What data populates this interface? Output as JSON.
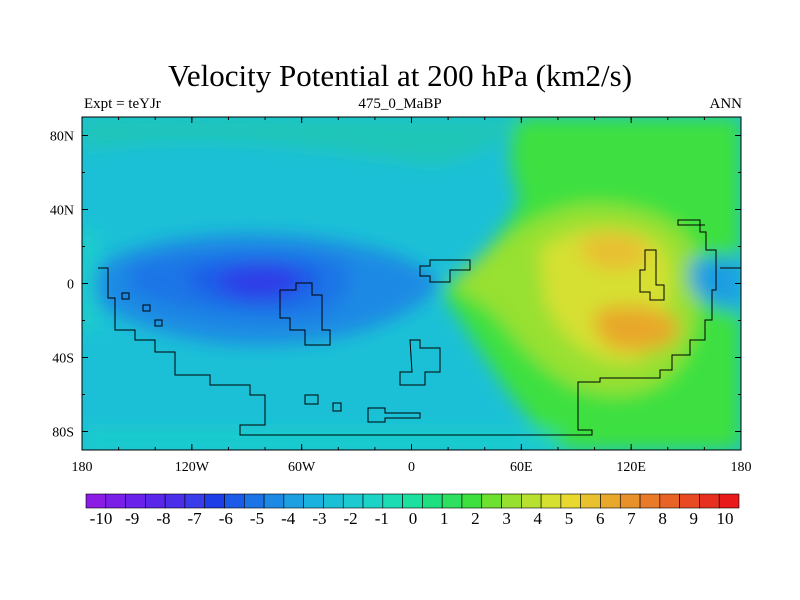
{
  "title": "Velocity Potential at 200 hPa (km2/s)",
  "subtitle_left": "Expt = teYJr",
  "subtitle_center": "475_0_MaBP",
  "subtitle_right": "ANN",
  "chart_data": {
    "type": "heatmap",
    "projection": "cylindrical-equidistant",
    "variable": "velocity potential at 200 hPa",
    "units": "km2/s",
    "lon_range": [
      -180,
      180
    ],
    "lat_range": [
      -90,
      90
    ],
    "x_ticks": [
      {
        "value": -180,
        "label": "180"
      },
      {
        "value": -120,
        "label": "120W"
      },
      {
        "value": -60,
        "label": "60W"
      },
      {
        "value": 0,
        "label": "0"
      },
      {
        "value": 60,
        "label": "60E"
      },
      {
        "value": 120,
        "label": "120E"
      },
      {
        "value": 180,
        "label": "180"
      }
    ],
    "y_ticks": [
      {
        "value": 80,
        "label": "80N"
      },
      {
        "value": 40,
        "label": "40N"
      },
      {
        "value": 0,
        "label": "0"
      },
      {
        "value": -40,
        "label": "40S"
      },
      {
        "value": -80,
        "label": "80S"
      }
    ],
    "colorbar": {
      "labels": [
        "-10",
        "-9",
        "-8",
        "-7",
        "-6",
        "-5",
        "-4",
        "-3",
        "-2",
        "-1",
        "0",
        "1",
        "2",
        "3",
        "4",
        "5",
        "6",
        "7",
        "8",
        "9",
        "10"
      ],
      "colors": [
        "#8a1ce6",
        "#7a1fe8",
        "#6a22ea",
        "#5a27ea",
        "#4a2eea",
        "#3a3cea",
        "#1e3ee8",
        "#1c5be8",
        "#1c74e6",
        "#1c8ae4",
        "#1ca0e2",
        "#1cb2e0",
        "#1cc0d6",
        "#1ccad0",
        "#1cd4c6",
        "#1cdcb4",
        "#1ce09e",
        "#1ee080",
        "#2ee060",
        "#3ee040",
        "#6ee030",
        "#98e030",
        "#b8e030",
        "#d6e030",
        "#e8d830",
        "#e8c030",
        "#e8a82c",
        "#e8902a",
        "#e87a28",
        "#e86426",
        "#e84a24",
        "#e83020",
        "#e81a1a"
      ]
    },
    "features": [
      {
        "name": "strong negative center (convergence aloft minimum)",
        "lon": -77,
        "lat": 3,
        "value": -7
      },
      {
        "name": "positive maximum over Asia / Pacific rim",
        "lon": 123,
        "lat": -23,
        "value": 6.5
      },
      {
        "name": "secondary positive maximum",
        "lon": 118,
        "lat": 20,
        "value": 5
      }
    ]
  }
}
